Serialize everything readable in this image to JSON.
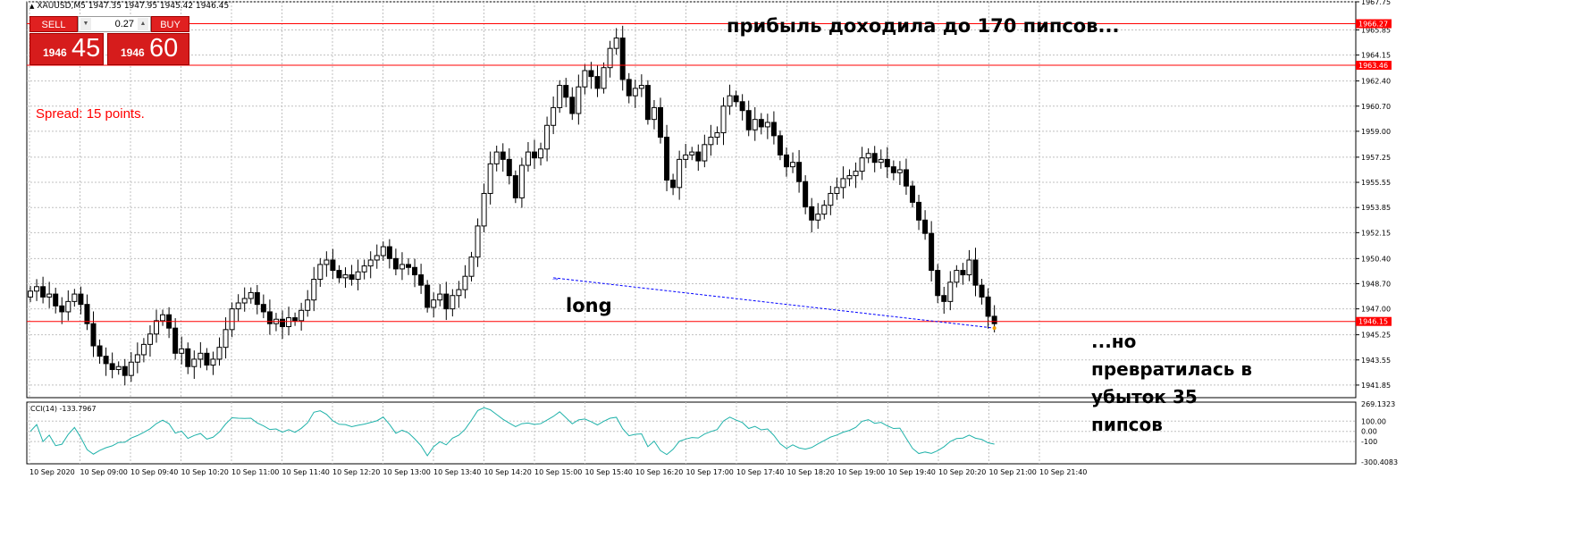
{
  "header": {
    "symbol_line": "XAUUSD,M5  1947.35 1947.95 1945.42 1946.45"
  },
  "trade_panel": {
    "sell_label": "SELL",
    "buy_label": "BUY",
    "lot": "0.27",
    "sell_price_small": "1946",
    "sell_price_big": "45",
    "buy_price_small": "1946",
    "buy_price_big": "60"
  },
  "spread_text": "Spread: 15 points.",
  "annotations": {
    "top": "прибыль доходила до 170 пипсов...",
    "long": "long",
    "bottom_lines": [
      "...но",
      "превратилась в",
      "убыток 35",
      "пипсов"
    ]
  },
  "indicator": {
    "label": "CCI(14) -133.7967",
    "levels": [
      269.1323,
      100,
      0,
      -100,
      -300.4083
    ],
    "level_labels": [
      "269.1323",
      "100.00",
      "0.00",
      "-100",
      "-300.4083"
    ]
  },
  "colors": {
    "level_line": "#ff0000",
    "grid": "#c0c0c0",
    "candle": "#000000",
    "cci": "#20b2aa",
    "trendline": "#0000ff",
    "price_tag_bg": "#ff0000"
  },
  "chart_data": {
    "type": "candlestick",
    "symbol": "XAUUSD",
    "timeframe": "M5",
    "ylim": [
      1941.0,
      1967.75
    ],
    "y_ticks": [
      "1967.75",
      "1965.85",
      "1964.15",
      "1962.40",
      "1960.70",
      "1959.00",
      "1957.25",
      "1955.55",
      "1953.85",
      "1952.15",
      "1950.40",
      "1948.70",
      "1947.00",
      "1945.25",
      "1943.55",
      "1941.85"
    ],
    "x_ticks": [
      "10 Sep 2020",
      "10 Sep 09:00",
      "10 Sep 09:40",
      "10 Sep 10:20",
      "10 Sep 11:00",
      "10 Sep 11:40",
      "10 Sep 12:20",
      "10 Sep 13:00",
      "10 Sep 13:40",
      "10 Sep 14:20",
      "10 Sep 15:00",
      "10 Sep 15:40",
      "10 Sep 16:20",
      "10 Sep 17:00",
      "10 Sep 17:40",
      "10 Sep 18:20",
      "10 Sep 19:00",
      "10 Sep 19:40",
      "10 Sep 20:20",
      "10 Sep 21:00",
      "10 Sep 21:40"
    ],
    "horizontal_levels": [
      {
        "price": 1966.27,
        "label": "1966.27"
      },
      {
        "price": 1963.46,
        "label": "1963.46"
      },
      {
        "price": 1946.15,
        "label": "1946.15"
      }
    ],
    "current_price_label": "1946.45",
    "close_path": [
      1948.2,
      1948.5,
      1947.8,
      1948.0,
      1947.2,
      1946.8,
      1947.5,
      1948.0,
      1947.3,
      1946.0,
      1944.5,
      1943.8,
      1943.3,
      1942.9,
      1943.1,
      1942.5,
      1943.4,
      1943.9,
      1944.6,
      1945.3,
      1946.2,
      1946.6,
      1945.7,
      1944.0,
      1944.3,
      1943.1,
      1943.6,
      1944.0,
      1943.2,
      1943.6,
      1944.4,
      1945.6,
      1947.0,
      1947.4,
      1947.7,
      1948.1,
      1947.3,
      1946.8,
      1946.0,
      1946.3,
      1945.8,
      1946.4,
      1946.2,
      1946.9,
      1947.6,
      1949.0,
      1950.0,
      1950.3,
      1949.6,
      1949.1,
      1949.3,
      1949.0,
      1949.5,
      1949.9,
      1950.3,
      1950.6,
      1951.2,
      1950.4,
      1949.7,
      1950.0,
      1949.8,
      1949.3,
      1948.6,
      1947.1,
      1947.6,
      1948.0,
      1947.0,
      1947.9,
      1948.3,
      1949.2,
      1950.5,
      1952.6,
      1954.8,
      1956.8,
      1957.6,
      1957.1,
      1956.0,
      1954.5,
      1956.7,
      1957.6,
      1957.2,
      1957.8,
      1959.4,
      1960.6,
      1962.1,
      1961.3,
      1960.2,
      1962.0,
      1963.1,
      1962.7,
      1961.9,
      1963.3,
      1964.6,
      1965.3,
      1962.5,
      1961.4,
      1961.9,
      1962.1,
      1959.8,
      1960.6,
      1958.6,
      1955.7,
      1955.2,
      1957.1,
      1957.4,
      1957.6,
      1957.0,
      1958.1,
      1958.6,
      1958.9,
      1960.7,
      1961.4,
      1961.0,
      1960.4,
      1959.1,
      1959.8,
      1959.3,
      1959.6,
      1958.7,
      1957.4,
      1956.6,
      1956.9,
      1955.6,
      1953.9,
      1953.0,
      1953.4,
      1954.0,
      1954.8,
      1955.2,
      1955.8,
      1956.0,
      1956.3,
      1957.2,
      1957.5,
      1956.9,
      1957.1,
      1956.6,
      1956.2,
      1956.4,
      1955.3,
      1954.2,
      1953.0,
      1952.1,
      1949.6,
      1947.9,
      1947.5,
      1948.8,
      1949.6,
      1949.3,
      1950.3,
      1948.6,
      1947.8,
      1946.5,
      1946.0
    ],
    "trade": {
      "type": "long",
      "entry": 1949.1,
      "exit": 1945.7
    }
  }
}
